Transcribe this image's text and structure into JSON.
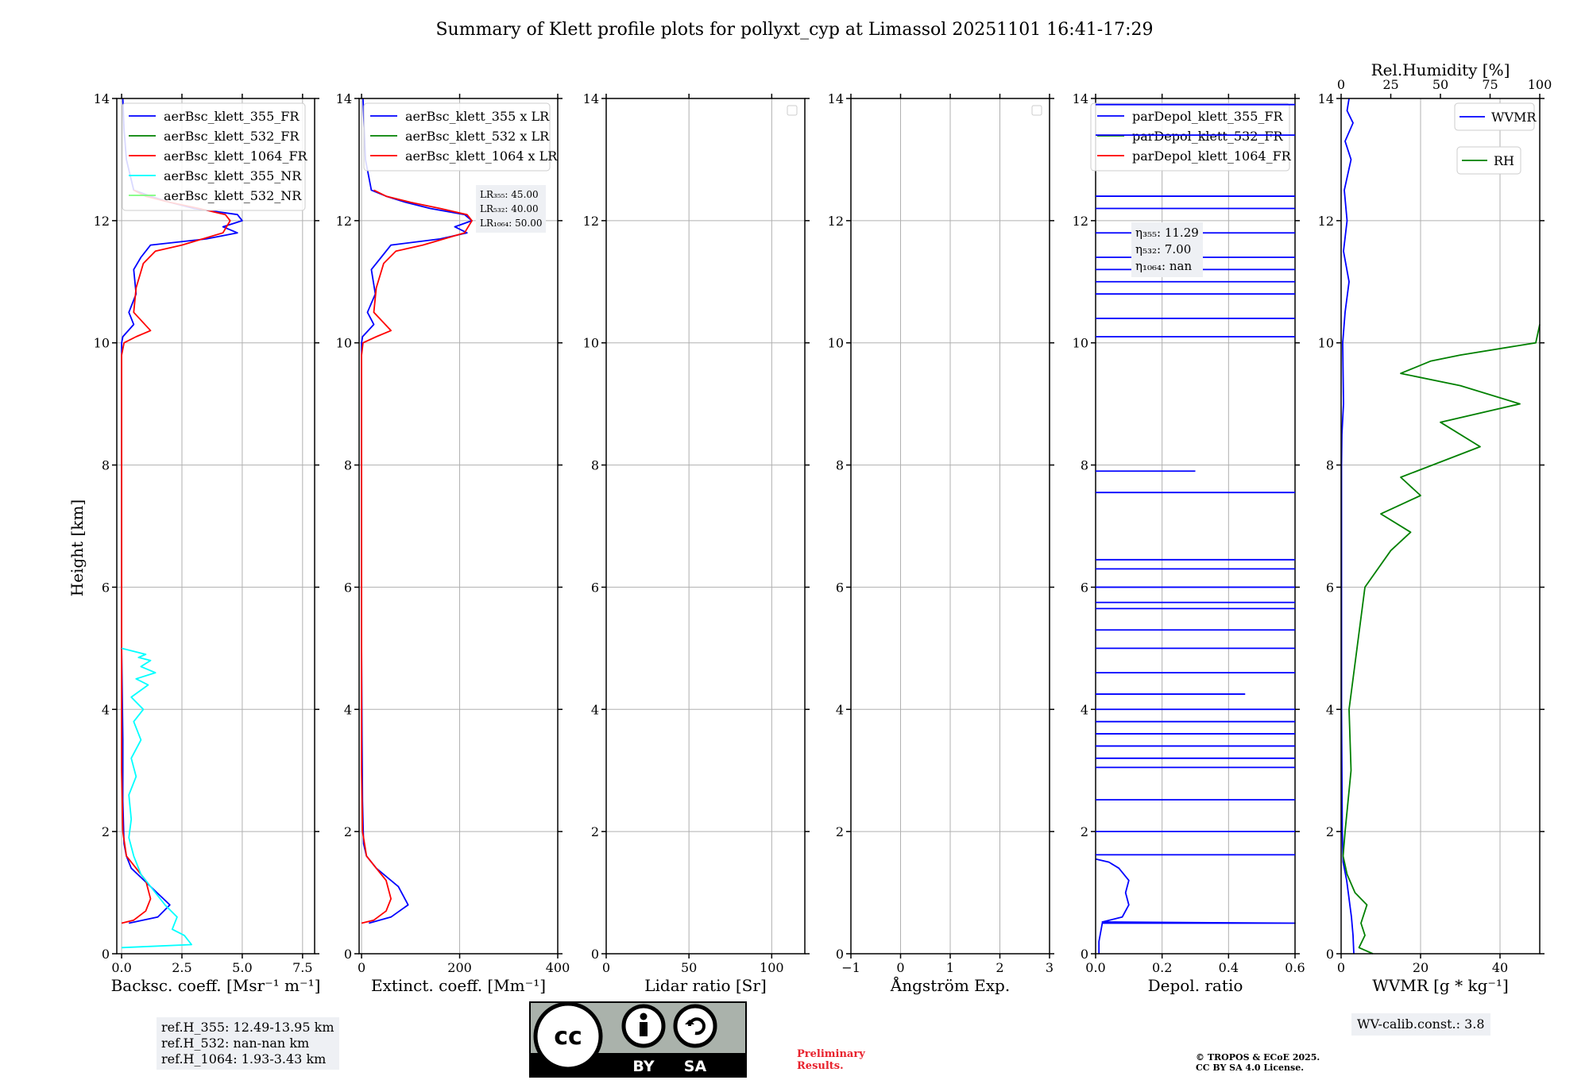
{
  "title": "Summary of Klett profile plots for pollyxt_cyp at Limassol 20251101 16:41-17:29",
  "ylabel": "Height [km]",
  "yticks": [
    "0",
    "2",
    "4",
    "6",
    "8",
    "10",
    "12",
    "14"
  ],
  "colors": {
    "b355": "#0000ff",
    "g532": "#008000",
    "r1064": "#ff0000",
    "c355nr": "#00ffff",
    "lg532nr": "#7cfc7c",
    "rh": "#008000"
  },
  "chart_data": [
    {
      "type": "line",
      "xlabel": "Backsc. coeff. [Msr⁻¹ m⁻¹]",
      "xlim": [
        -0.2,
        8.0
      ],
      "ylim": [
        0,
        14
      ],
      "xticks": [
        "0.0",
        "2.5",
        "5.0",
        "7.5"
      ],
      "legend": [
        "aerBsc_klett_355_FR",
        "aerBsc_klett_532_FR",
        "aerBsc_klett_1064_FR",
        "aerBsc_klett_355_NR",
        "aerBsc_klett_532_NR"
      ],
      "series": [
        {
          "name": "aerBsc_klett_355_FR",
          "color": "#0000ff",
          "x": [
            0.3,
            1.5,
            2.0,
            1.2,
            0.4,
            0.2,
            0.1,
            0.05,
            0.05,
            0.0,
            0.0,
            0.0,
            0.0,
            0.0,
            0.0,
            0.05,
            0.5,
            0.3,
            0.6,
            0.5,
            0.8,
            1.2,
            3.5,
            4.8,
            4.2,
            5.0,
            4.8,
            3.0,
            2.0,
            1.2,
            0.5,
            0.2,
            0.1,
            0.05
          ],
          "y": [
            0.5,
            0.6,
            0.8,
            1.1,
            1.4,
            1.6,
            1.8,
            2.5,
            3.5,
            5.0,
            6.5,
            8.0,
            9.0,
            9.8,
            10.0,
            10.1,
            10.3,
            10.5,
            10.8,
            11.2,
            11.4,
            11.6,
            11.7,
            11.8,
            11.9,
            12.0,
            12.1,
            12.2,
            12.3,
            12.4,
            12.5,
            13.0,
            13.5,
            14.0
          ]
        },
        {
          "name": "aerBsc_klett_1064_FR",
          "color": "#ff0000",
          "x": [
            0.0,
            0.5,
            1.0,
            1.2,
            1.0,
            0.6,
            0.2,
            0.05,
            0.0,
            0.0,
            0.0,
            0.0,
            0.0,
            0.1,
            0.6,
            1.2,
            0.5,
            0.6,
            0.9,
            1.4,
            2.5,
            4.2,
            4.5,
            4.3,
            3.2,
            2.0,
            1.0,
            0.5
          ],
          "y": [
            0.5,
            0.55,
            0.7,
            0.9,
            1.2,
            1.4,
            1.6,
            2.0,
            3.0,
            5.0,
            7.0,
            9.0,
            9.8,
            10.0,
            10.1,
            10.2,
            10.5,
            10.9,
            11.3,
            11.5,
            11.6,
            11.8,
            12.0,
            12.1,
            12.2,
            12.3,
            12.4,
            12.5
          ]
        },
        {
          "name": "aerBsc_klett_355_NR",
          "color": "#00ffff",
          "x": [
            0.0,
            2.9,
            2.6,
            2.1,
            2.3,
            1.8,
            1.4,
            0.8,
            0.5,
            0.3,
            0.4,
            0.3,
            0.6,
            0.4,
            0.8,
            0.5,
            0.9,
            0.4,
            1.1,
            0.6,
            1.4,
            0.8,
            1.2,
            0.7,
            1.0,
            0.0
          ],
          "y": [
            0.1,
            0.15,
            0.3,
            0.4,
            0.6,
            0.8,
            1.0,
            1.3,
            1.6,
            1.9,
            2.2,
            2.6,
            2.9,
            3.2,
            3.5,
            3.8,
            4.0,
            4.2,
            4.4,
            4.5,
            4.6,
            4.7,
            4.8,
            4.85,
            4.9,
            5.0
          ]
        }
      ],
      "annotation": {
        "lines": [
          "ref.H_355: 12.49-13.95 km",
          "ref.H_532: nan-nan km",
          "ref.H_1064: 1.93-3.43 km"
        ]
      }
    },
    {
      "type": "line",
      "xlabel": "Extinct. coeff. [Mm⁻¹]",
      "xlim": [
        -5,
        400
      ],
      "ylim": [
        0,
        14
      ],
      "xticks": [
        "0",
        "200",
        "400"
      ],
      "legend": [
        "aerBsc_klett_355 x LR",
        "aerBsc_klett_532 x LR",
        "aerBsc_klett_1064 x LR"
      ],
      "series": [
        {
          "name": "aerBsc_klett_355 x LR",
          "color": "#0000ff",
          "x": [
            15,
            60,
            95,
            75,
            30,
            10,
            4,
            2,
            1,
            0,
            0,
            0,
            0,
            0,
            2,
            25,
            12,
            28,
            20,
            40,
            60,
            160,
            215,
            190,
            225,
            210,
            140,
            90,
            50,
            20,
            8,
            3
          ],
          "y": [
            0.5,
            0.6,
            0.8,
            1.1,
            1.4,
            1.6,
            1.8,
            2.5,
            3.5,
            5.0,
            7.0,
            9.0,
            9.8,
            10.0,
            10.1,
            10.3,
            10.5,
            10.8,
            11.2,
            11.4,
            11.6,
            11.7,
            11.8,
            11.9,
            12.0,
            12.1,
            12.2,
            12.3,
            12.4,
            12.5,
            13.0,
            14.0
          ]
        },
        {
          "name": "aerBsc_klett_1064 x LR",
          "color": "#ff0000",
          "x": [
            0,
            25,
            50,
            60,
            50,
            30,
            10,
            2,
            0,
            0,
            0,
            0,
            3,
            30,
            60,
            25,
            30,
            45,
            70,
            125,
            210,
            225,
            215,
            160,
            100,
            50,
            25
          ],
          "y": [
            0.5,
            0.55,
            0.7,
            0.9,
            1.2,
            1.4,
            1.6,
            2.0,
            3.0,
            6.0,
            9.0,
            9.8,
            10.0,
            10.1,
            10.2,
            10.5,
            10.9,
            11.3,
            11.5,
            11.6,
            11.8,
            12.0,
            12.1,
            12.2,
            12.3,
            12.4,
            12.5
          ]
        }
      ],
      "annotation": {
        "lines": [
          "LR₃₅₅: 45.00",
          "LR₅₃₂: 40.00",
          "LR₁₀₆₄: 50.00"
        ]
      }
    },
    {
      "type": "line",
      "xlabel": "Lidar ratio [Sr]",
      "xlim": [
        0,
        120
      ],
      "ylim": [
        0,
        14
      ],
      "xticks": [
        "0",
        "50",
        "100"
      ],
      "legend": [],
      "series": []
    },
    {
      "type": "line",
      "xlabel": "Ångström Exp.",
      "xlim": [
        -1,
        3
      ],
      "ylim": [
        0,
        14
      ],
      "xticks": [
        "−1",
        "0",
        "1",
        "2",
        "3"
      ],
      "legend": [],
      "series": []
    },
    {
      "type": "line",
      "xlabel": "Depol. ratio",
      "xlim": [
        0,
        0.6
      ],
      "ylim": [
        0,
        14
      ],
      "xticks": [
        "0.0",
        "0.2",
        "0.4",
        "0.6"
      ],
      "legend": [
        "parDepol_klett_355_FR",
        "parDepol_klett_532_FR",
        "parDepol_klett_1064_FR"
      ],
      "series": [
        {
          "name": "parDepol_klett_355_FR",
          "color": "#0000ff",
          "x": [
            0.01,
            0.01,
            0.02,
            0.6,
            0.02,
            0.08,
            0.1,
            0.09,
            0.1,
            0.07,
            0.04,
            0.0
          ],
          "y": [
            0.0,
            0.2,
            0.5,
            0.5,
            0.52,
            0.6,
            0.8,
            1.0,
            1.2,
            1.4,
            1.5,
            1.55
          ]
        }
      ],
      "annotation": {
        "lines": [
          "η₃₅₅: 11.29",
          "η₅₃₂: 7.00",
          "η₁₀₆₄: nan"
        ]
      }
    },
    {
      "type": "line",
      "xlabel": "WVMR [g * kg⁻¹]",
      "xlabel_top": "Rel.Humidity [%]",
      "xlim": [
        0,
        50
      ],
      "xlim_top": [
        0,
        100
      ],
      "ylim": [
        0,
        14
      ],
      "xticks": [
        "0",
        "20",
        "40"
      ],
      "xticks_top": [
        "0",
        "25",
        "50",
        "75",
        "100"
      ],
      "legend": [
        "WVMR",
        "RH"
      ],
      "series": [
        {
          "name": "WVMR",
          "color": "#0000ff",
          "x": [
            3.2,
            3.0,
            2.6,
            2.0,
            1.4,
            0.8,
            0.5,
            0.3,
            0.2,
            0.1,
            0.1,
            0.1,
            0.1,
            0.1,
            0.2,
            0.6,
            0.4,
            1.0,
            2.0,
            0.6,
            1.5,
            0.8,
            2.5,
            1.0,
            3.0,
            1.5,
            2.0
          ],
          "y": [
            0.0,
            0.3,
            0.6,
            0.9,
            1.2,
            1.4,
            1.5,
            2.0,
            3.0,
            4.0,
            5.0,
            6.0,
            7.0,
            8.0,
            8.5,
            9.0,
            10.0,
            10.5,
            11.0,
            11.5,
            12.0,
            12.5,
            13.0,
            13.3,
            13.6,
            13.8,
            14.0
          ]
        },
        {
          "name": "RH",
          "color": "#008000",
          "x": [
            16,
            9,
            12,
            10,
            13,
            7,
            3,
            1,
            2,
            5,
            4,
            8,
            12,
            25,
            35,
            20,
            40,
            30,
            70,
            50,
            90,
            60,
            30,
            45,
            60,
            98,
            100
          ],
          "y": [
            0.0,
            0.1,
            0.3,
            0.5,
            0.8,
            1.0,
            1.3,
            1.6,
            2.0,
            3.0,
            4.0,
            5.0,
            6.0,
            6.6,
            6.9,
            7.2,
            7.5,
            7.8,
            8.3,
            8.7,
            9.0,
            9.3,
            9.5,
            9.7,
            9.8,
            10.0,
            10.3
          ]
        }
      ],
      "annotation": {
        "lines": [
          "WV-calib.const.: 3.8"
        ]
      }
    }
  ],
  "license_badge": {
    "cc": "cc",
    "by": "BY",
    "sa": "SA"
  },
  "preliminary": [
    "Preliminary",
    "Results."
  ],
  "copyright": [
    "© TROPOS & ECoE 2025.",
    "CC BY SA 4.0 License."
  ]
}
